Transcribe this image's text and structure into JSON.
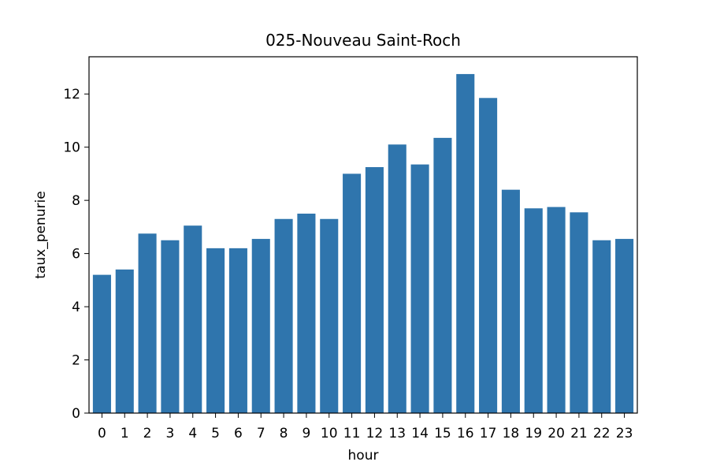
{
  "chart_data": {
    "type": "bar",
    "title": "025-Nouveau Saint-Roch",
    "xlabel": "hour",
    "ylabel": "taux_penurie",
    "categories": [
      "0",
      "1",
      "2",
      "3",
      "4",
      "5",
      "6",
      "7",
      "8",
      "9",
      "10",
      "11",
      "12",
      "13",
      "14",
      "15",
      "16",
      "17",
      "18",
      "19",
      "20",
      "21",
      "22",
      "23"
    ],
    "values": [
      5.2,
      5.4,
      6.75,
      6.5,
      7.05,
      6.2,
      6.2,
      6.55,
      7.3,
      7.5,
      7.3,
      9.0,
      9.25,
      10.1,
      9.35,
      10.35,
      12.75,
      11.85,
      8.4,
      7.7,
      7.75,
      7.55,
      6.5,
      6.55
    ],
    "ylim": [
      0,
      13.4
    ],
    "yticks": [
      0,
      2,
      4,
      6,
      8,
      10,
      12
    ],
    "bar_color": "#2f75ad",
    "grid": false,
    "legend": "none"
  }
}
